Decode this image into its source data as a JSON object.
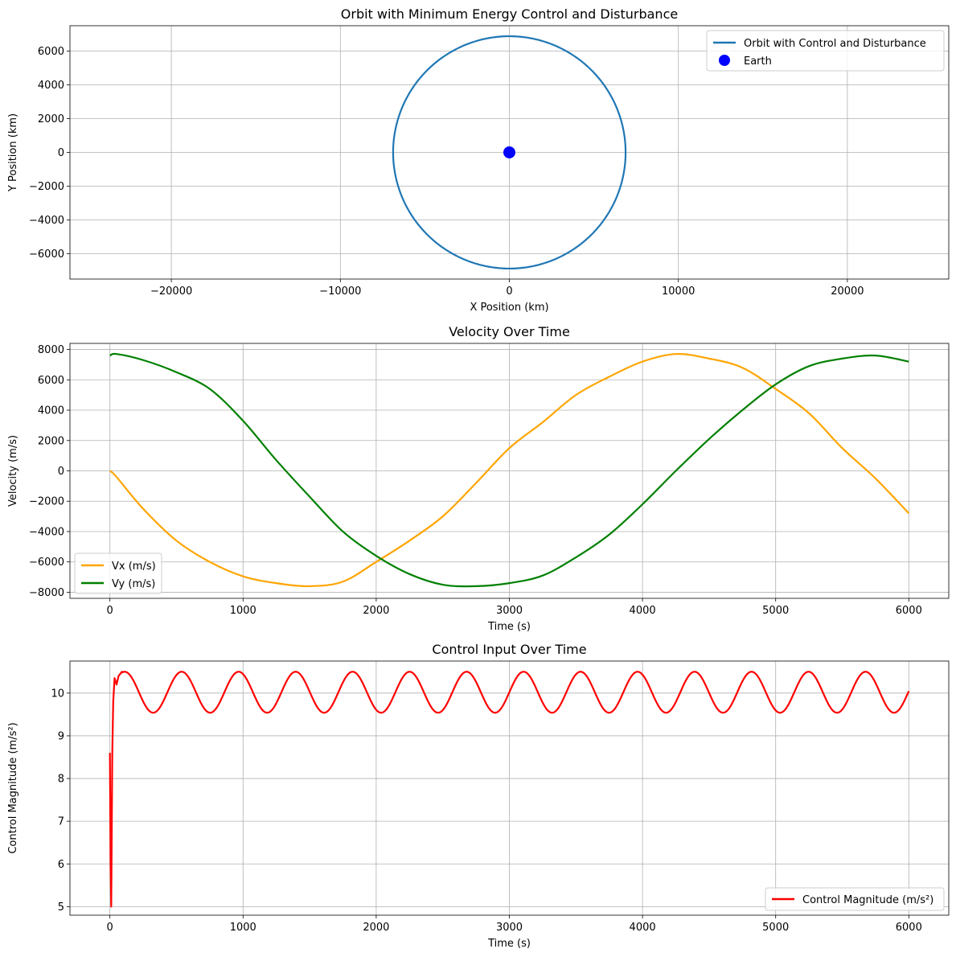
{
  "chart_data": [
    {
      "type": "line",
      "title": "Orbit with Minimum Energy Control and Disturbance",
      "xlabel": "X Position (km)",
      "ylabel": "Y Position (km)",
      "xlim": [
        -26000,
        26000
      ],
      "ylim": [
        -7500,
        7500
      ],
      "xticks": [
        -20000,
        -10000,
        0,
        10000,
        20000
      ],
      "yticks": [
        -6000,
        -4000,
        -2000,
        0,
        2000,
        4000,
        6000
      ],
      "grid": true,
      "legend_position": "top-right",
      "series": [
        {
          "name": "Orbit with Control and Disturbance",
          "kind": "circle-orbit",
          "center": [
            0,
            0
          ],
          "radius": 6878,
          "color": "#1f77b4"
        },
        {
          "name": "Earth",
          "kind": "marker",
          "x": 0,
          "y": 0,
          "color": "#0000ff"
        }
      ]
    },
    {
      "type": "line",
      "title": "Velocity Over Time",
      "xlabel": "Time (s)",
      "ylabel": "Velocity (m/s)",
      "xlim": [
        -300,
        6300
      ],
      "ylim": [
        -8400,
        8400
      ],
      "xticks": [
        0,
        1000,
        2000,
        3000,
        4000,
        5000,
        6000
      ],
      "yticks": [
        -8000,
        -6000,
        -4000,
        -2000,
        0,
        2000,
        4000,
        6000,
        8000
      ],
      "grid": true,
      "legend_position": "bottom-left",
      "x": [
        0,
        50,
        250,
        500,
        750,
        1000,
        1250,
        1500,
        1750,
        2000,
        2250,
        2500,
        2750,
        3000,
        3250,
        3500,
        3750,
        4000,
        4250,
        4500,
        4750,
        5000,
        5250,
        5500,
        5750,
        6000
      ],
      "series": [
        {
          "name": "Vx (m/s)",
          "color": "#ffa500",
          "values": [
            0,
            -400,
            -2500,
            -4600,
            -6000,
            -6950,
            -7400,
            -7600,
            -7300,
            -6000,
            -4600,
            -3000,
            -800,
            1500,
            3200,
            5000,
            6200,
            7200,
            7700,
            7400,
            6800,
            5400,
            3800,
            1500,
            -500,
            -2800
          ]
        },
        {
          "name": "Vy (m/s)",
          "color": "#008000",
          "values": [
            7600,
            7700,
            7300,
            6500,
            5400,
            3300,
            700,
            -1700,
            -4000,
            -5600,
            -6800,
            -7500,
            -7600,
            -7400,
            -6900,
            -5700,
            -4200,
            -2200,
            0,
            2100,
            4000,
            5700,
            6900,
            7400,
            7600,
            7200
          ]
        }
      ]
    },
    {
      "type": "line",
      "title": "Control Input Over Time",
      "xlabel": "Time (s)",
      "ylabel": "Control Magnitude (m/s²)",
      "xlim": [
        -300,
        6300
      ],
      "ylim": [
        4.8,
        10.75
      ],
      "xticks": [
        0,
        1000,
        2000,
        3000,
        4000,
        5000,
        6000
      ],
      "yticks": [
        5,
        6,
        7,
        8,
        9,
        10
      ],
      "grid": true,
      "legend_position": "bottom-right",
      "series": [
        {
          "name": "Control Magnitude (m/s²)",
          "color": "#ff0000",
          "initial_transient": [
            [
              0,
              8.6
            ],
            [
              5,
              6.0
            ],
            [
              10,
              5.0
            ],
            [
              18,
              8.6
            ],
            [
              25,
              9.8
            ],
            [
              35,
              10.35
            ],
            [
              50,
              10.2
            ],
            [
              65,
              10.4
            ],
            [
              90,
              10.5
            ]
          ],
          "oscillation": {
            "mean": 10.02,
            "amplitude": 0.48,
            "period": 428,
            "peak_at": 111,
            "until": 6000
          },
          "end_value": 10.27
        }
      ]
    }
  ]
}
